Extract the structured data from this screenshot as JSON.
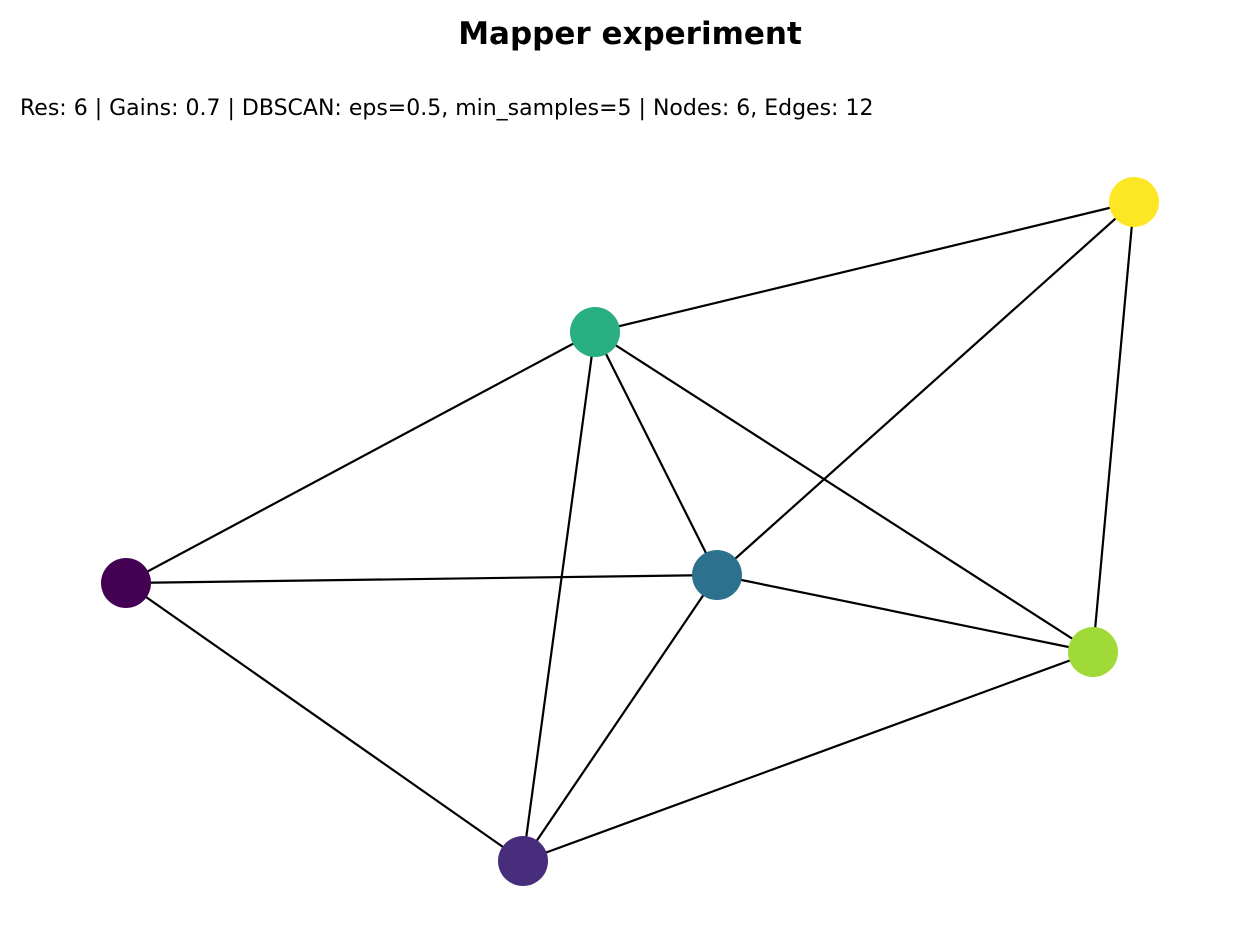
{
  "title": "Mapper experiment",
  "subtitle": "Res: 6 | Gains: 0.7 | DBSCAN: eps=0.5, min_samples=5 | Nodes: 6, Edges: 12",
  "graph": {
    "nodes": [
      {
        "id": "node-0",
        "color": "#440154"
      },
      {
        "id": "node-1",
        "color": "#472d7b"
      },
      {
        "id": "node-2",
        "color": "#2c728e"
      },
      {
        "id": "node-3",
        "color": "#28ae80"
      },
      {
        "id": "node-4",
        "color": "#a0da39"
      },
      {
        "id": "node-5",
        "color": "#fde725"
      }
    ],
    "edges": [
      [
        "node-0",
        "node-3"
      ],
      [
        "node-0",
        "node-2"
      ],
      [
        "node-0",
        "node-1"
      ],
      [
        "node-3",
        "node-5"
      ],
      [
        "node-3",
        "node-2"
      ],
      [
        "node-3",
        "node-1"
      ],
      [
        "node-3",
        "node-4"
      ],
      [
        "node-2",
        "node-5"
      ],
      [
        "node-2",
        "node-4"
      ],
      [
        "node-2",
        "node-1"
      ],
      [
        "node-1",
        "node-4"
      ],
      [
        "node-4",
        "node-5"
      ]
    ],
    "edge_color": "#000000"
  }
}
